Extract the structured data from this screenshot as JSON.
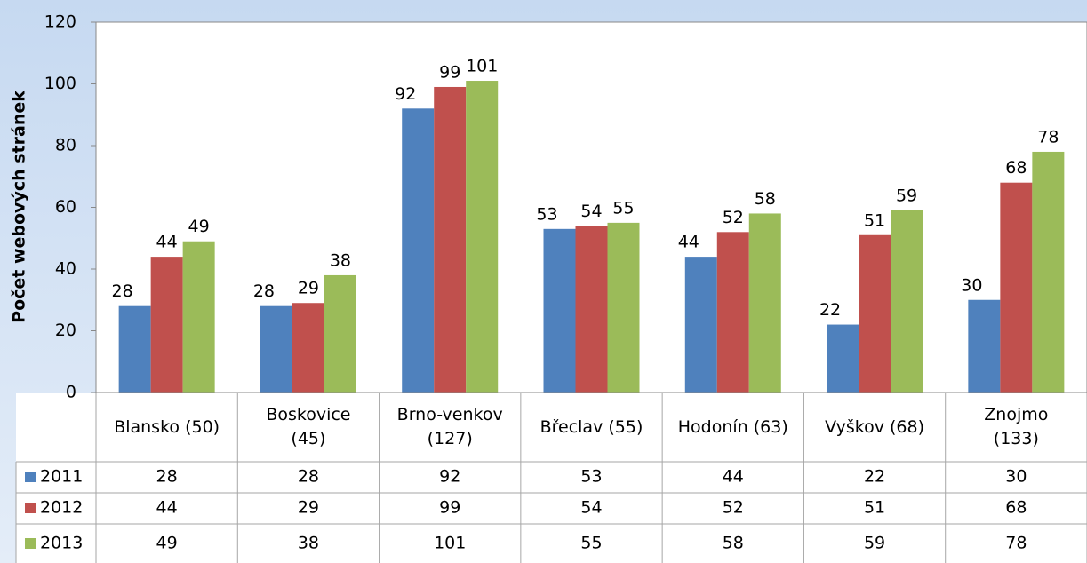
{
  "chart_data": {
    "type": "bar",
    "y_label": "Počet webových stránek",
    "categories": [
      "Blansko (50)",
      "Boskovice\n(45)",
      "Brno-venkov\n(127)",
      "Břeclav (55)",
      "Hodonín (63)",
      "Vyškov (68)",
      "Znojmo\n(133)"
    ],
    "series": [
      {
        "name": "2011",
        "color": "#4f81bd",
        "values": [
          28,
          28,
          92,
          53,
          44,
          22,
          30
        ]
      },
      {
        "name": "2012",
        "color": "#c0504d",
        "values": [
          44,
          29,
          99,
          54,
          52,
          51,
          68
        ]
      },
      {
        "name": "2013",
        "color": "#9bbb59",
        "values": [
          49,
          38,
          101,
          55,
          58,
          59,
          78
        ]
      }
    ],
    "ylim": [
      0,
      120
    ],
    "yticks": [
      0,
      20,
      40,
      60,
      80,
      100,
      120
    ],
    "grid": false,
    "legend": "data-table"
  }
}
